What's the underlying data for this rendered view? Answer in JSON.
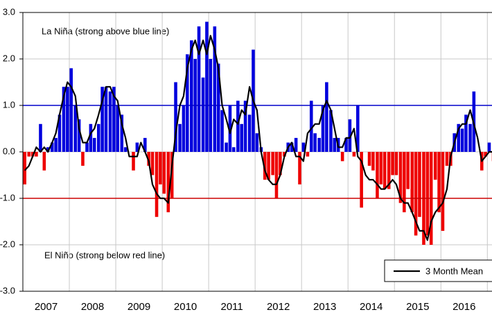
{
  "chart_data": {
    "type": "bar",
    "annotations": [
      "La Niña (strong above blue line)",
      "El Niño (strong below red line)"
    ],
    "x": [
      2007.04,
      2007.13,
      2007.21,
      2007.29,
      2007.38,
      2007.46,
      2007.54,
      2007.63,
      2007.71,
      2007.79,
      2007.88,
      2007.96,
      2008.04,
      2008.13,
      2008.21,
      2008.29,
      2008.38,
      2008.46,
      2008.54,
      2008.63,
      2008.71,
      2008.79,
      2008.88,
      2008.96,
      2009.04,
      2009.13,
      2009.21,
      2009.29,
      2009.38,
      2009.46,
      2009.54,
      2009.63,
      2009.71,
      2009.79,
      2009.88,
      2009.96,
      2010.04,
      2010.13,
      2010.21,
      2010.29,
      2010.38,
      2010.46,
      2010.54,
      2010.63,
      2010.71,
      2010.79,
      2010.88,
      2010.96,
      2011.04,
      2011.13,
      2011.21,
      2011.29,
      2011.38,
      2011.46,
      2011.54,
      2011.63,
      2011.71,
      2011.79,
      2011.88,
      2011.96,
      2012.04,
      2012.13,
      2012.21,
      2012.29,
      2012.38,
      2012.46,
      2012.54,
      2012.63,
      2012.71,
      2012.79,
      2012.88,
      2012.96,
      2013.04,
      2013.13,
      2013.21,
      2013.29,
      2013.38,
      2013.46,
      2013.54,
      2013.63,
      2013.71,
      2013.79,
      2013.88,
      2013.96,
      2014.04,
      2014.13,
      2014.21,
      2014.29,
      2014.38,
      2014.46,
      2014.54,
      2014.63,
      2014.71,
      2014.79,
      2014.88,
      2014.96,
      2015.04,
      2015.13,
      2015.21,
      2015.29,
      2015.38,
      2015.46,
      2015.54,
      2015.63,
      2015.71,
      2015.79,
      2015.88,
      2015.96,
      2016.04,
      2016.13,
      2016.21,
      2016.29,
      2016.38,
      2016.46,
      2016.54,
      2016.63,
      2016.71,
      2016.79,
      2016.88,
      2016.96,
      2017.04,
      2017.13
    ],
    "series": [
      {
        "kind": "bar",
        "color_positive": "#0000dd",
        "color_negative": "#ee0000",
        "values": [
          -0.7,
          -0.1,
          -0.1,
          -0.1,
          0.6,
          -0.4,
          0.1,
          0.2,
          0.3,
          0.8,
          1.4,
          1.4,
          1.8,
          1.0,
          0.7,
          -0.3,
          0.2,
          0.6,
          0.3,
          0.6,
          1.4,
          1.4,
          1.3,
          1.4,
          1.0,
          0.8,
          0.1,
          0.0,
          -0.4,
          0.2,
          0.0,
          0.3,
          -0.3,
          -0.5,
          -1.4,
          -0.7,
          -0.9,
          -1.3,
          -1.0,
          1.5,
          0.6,
          1.0,
          2.1,
          2.4,
          2.0,
          2.7,
          1.6,
          2.8,
          2.0,
          2.7,
          1.9,
          0.9,
          0.2,
          1.0,
          0.1,
          1.1,
          0.6,
          1.1,
          0.8,
          2.2,
          0.4,
          0.1,
          -0.6,
          -0.6,
          -0.5,
          -1.0,
          -0.5,
          -0.1,
          0.2,
          0.2,
          0.3,
          -0.7,
          0.2,
          -0.1,
          1.1,
          0.4,
          0.3,
          1.0,
          1.5,
          0.9,
          0.3,
          0.3,
          -0.2,
          0.3,
          0.7,
          -0.1,
          1.0,
          -1.2,
          0.0,
          -0.3,
          -0.4,
          -1.0,
          -0.7,
          -0.8,
          -0.8,
          -0.5,
          -0.5,
          -1.1,
          -1.3,
          -0.8,
          -1.3,
          -1.8,
          -1.4,
          -2.0,
          -1.8,
          -2.0,
          -0.6,
          -1.3,
          -1.7,
          -0.3,
          -0.3,
          0.4,
          0.6,
          0.5,
          0.8,
          0.6,
          1.3,
          0.0,
          -0.4,
          -0.1,
          0.2,
          -0.2
        ]
      },
      {
        "name": "3 Month Mean",
        "kind": "line",
        "color": "#000000",
        "values": [
          -0.4,
          -0.3,
          -0.1,
          0.1,
          0.0,
          0.1,
          0.0,
          0.2,
          0.4,
          0.8,
          1.2,
          1.5,
          1.4,
          1.2,
          0.5,
          0.2,
          0.2,
          0.4,
          0.5,
          0.8,
          1.1,
          1.4,
          1.4,
          1.2,
          1.1,
          0.6,
          0.3,
          -0.1,
          -0.1,
          -0.1,
          0.2,
          0.0,
          -0.2,
          -0.7,
          -0.9,
          -1.0,
          -1.0,
          -1.1,
          -0.3,
          0.4,
          1.0,
          1.2,
          1.8,
          2.2,
          2.4,
          2.1,
          2.4,
          2.1,
          2.5,
          2.2,
          1.8,
          1.0,
          0.7,
          0.4,
          0.7,
          0.6,
          0.9,
          0.8,
          1.4,
          1.1,
          0.9,
          0.0,
          -0.4,
          -0.6,
          -0.7,
          -0.7,
          -0.5,
          -0.1,
          0.1,
          0.2,
          -0.1,
          -0.1,
          -0.2,
          0.4,
          0.5,
          0.6,
          0.6,
          0.9,
          1.1,
          0.9,
          0.5,
          0.1,
          0.1,
          0.3,
          0.3,
          0.5,
          -0.1,
          -0.2,
          -0.5,
          -0.6,
          -0.6,
          -0.7,
          -0.8,
          -0.8,
          -0.7,
          -0.6,
          -0.7,
          -1.0,
          -1.1,
          -1.1,
          -1.3,
          -1.5,
          -1.7,
          -1.7,
          -1.9,
          -1.5,
          -1.3,
          -1.2,
          -1.1,
          -0.8,
          -0.1,
          0.2,
          0.5,
          0.6,
          0.6,
          0.9,
          0.6,
          0.3,
          -0.2,
          -0.1,
          0.0,
          0.0
        ]
      }
    ],
    "thresholds": [
      {
        "value": 1,
        "color": "#0000cc"
      },
      {
        "value": -1,
        "color": "#cc0000"
      }
    ],
    "xlim": [
      2007,
      2017.1
    ],
    "xticks": [
      {
        "value": 2007.5,
        "label": "2007"
      },
      {
        "value": 2008.5,
        "label": "2008"
      },
      {
        "value": 2009.5,
        "label": "2009"
      },
      {
        "value": 2010.5,
        "label": "2010"
      },
      {
        "value": 2011.5,
        "label": "2011"
      },
      {
        "value": 2012.5,
        "label": "2012"
      },
      {
        "value": 2013.5,
        "label": "2013"
      },
      {
        "value": 2014.5,
        "label": "2014"
      },
      {
        "value": 2015.5,
        "label": "2015"
      },
      {
        "value": 2016.5,
        "label": "2016"
      }
    ],
    "xgrid": [
      2008,
      2009,
      2010,
      2011,
      2012,
      2013,
      2014,
      2015,
      2016,
      2017
    ],
    "ylim": [
      -3,
      3
    ],
    "yticks": [
      {
        "value": -3,
        "label": "-3.0"
      },
      {
        "value": -2,
        "label": "-2.0"
      },
      {
        "value": -1,
        "label": "-1.0"
      },
      {
        "value": 0,
        "label": "0.0"
      },
      {
        "value": 1,
        "label": "1.0"
      },
      {
        "value": 2,
        "label": "2.0"
      },
      {
        "value": 3,
        "label": "3.0"
      }
    ],
    "grid": true,
    "legend": "lower right"
  }
}
